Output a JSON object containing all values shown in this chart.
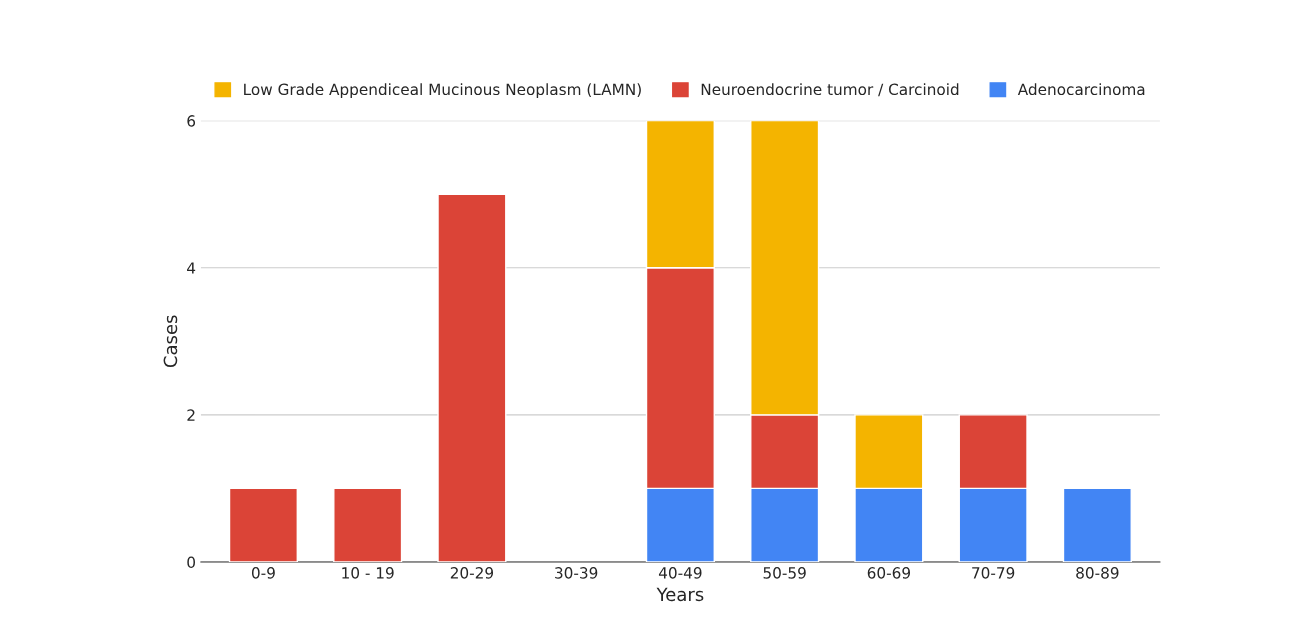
{
  "chart_data": {
    "type": "bar",
    "stacked": true,
    "xlabel": "Years",
    "ylabel": "Cases",
    "categories": [
      "0-9",
      "10 - 19",
      "20-29",
      "30-39",
      "40-49",
      "50-59",
      "60-69",
      "70-79",
      "80-89"
    ],
    "series": [
      {
        "name": "Adenocarcinoma",
        "color": "#4285f4",
        "values": [
          null,
          null,
          null,
          null,
          1,
          1,
          1,
          1,
          1
        ]
      },
      {
        "name": "Neuroendocrine tumor / Carcinoid",
        "color": "#db4437",
        "values": [
          1,
          1,
          5,
          null,
          3,
          1,
          null,
          1,
          null
        ]
      },
      {
        "name": "Low Grade Appendiceal Mucinous Neoplasm (LAMN)",
        "color": "#f4b400",
        "values": [
          null,
          null,
          null,
          null,
          2,
          4,
          1,
          null,
          null
        ]
      }
    ],
    "ylim": [
      0,
      6
    ],
    "yticks": [
      0,
      2,
      4,
      6
    ],
    "grid": "y",
    "legend": "top"
  }
}
